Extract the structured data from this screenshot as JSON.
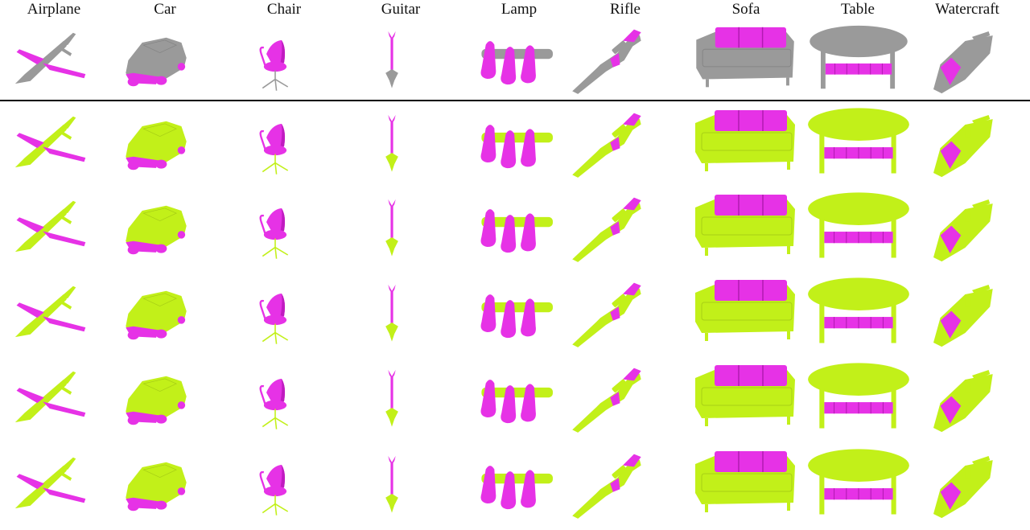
{
  "figure": {
    "columns": [
      {
        "label": "Airplane",
        "icon": "airplane-shape"
      },
      {
        "label": "Car",
        "icon": "car-shape"
      },
      {
        "label": "Chair",
        "icon": "chair-shape"
      },
      {
        "label": "Guitar",
        "icon": "guitar-shape"
      },
      {
        "label": "Lamp",
        "icon": "lamp-shape"
      },
      {
        "label": "Rifle",
        "icon": "rifle-shape"
      },
      {
        "label": "Sofa",
        "icon": "sofa-shape"
      },
      {
        "label": "Table",
        "icon": "table-shape"
      },
      {
        "label": "Watercraft",
        "icon": "watercraft-shape"
      }
    ],
    "rows": [
      {
        "role": "source",
        "body_color": "#9a9a9a"
      },
      {
        "role": "result",
        "body_color": "#c2f019"
      },
      {
        "role": "result",
        "body_color": "#c2f019"
      },
      {
        "role": "result",
        "body_color": "#c2f019"
      },
      {
        "role": "result",
        "body_color": "#c2f019"
      },
      {
        "role": "result",
        "body_color": "#c2f019"
      }
    ],
    "colors": {
      "highlight": "#e632e6",
      "source_body": "#9a9a9a",
      "result_body": "#c2f019",
      "divider": "#000000"
    }
  }
}
